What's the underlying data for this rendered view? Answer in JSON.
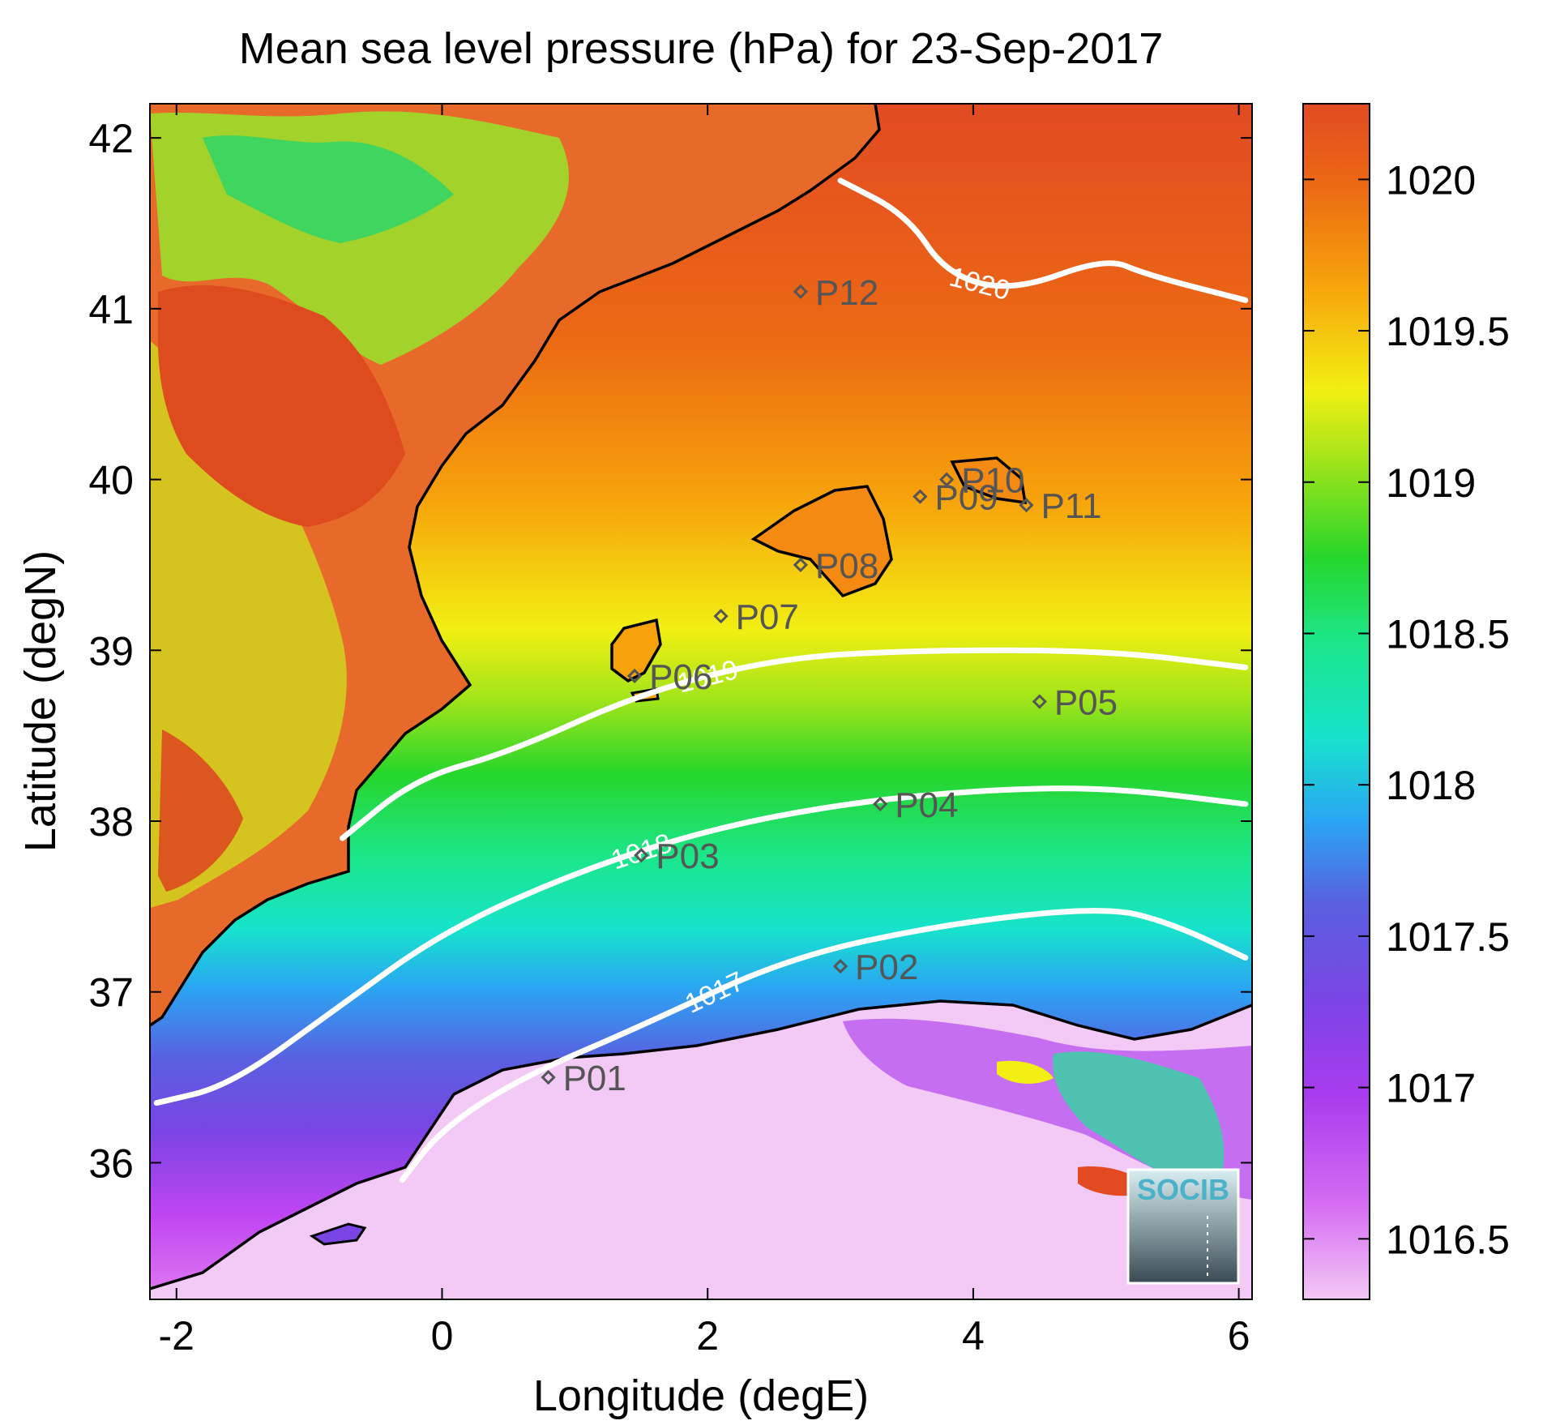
{
  "chart_data": {
    "type": "heatmap",
    "title": "Mean sea level pressure (hPa) for 23-Sep-2017",
    "xlabel": "Longitude (degE)",
    "ylabel": "Latitude (degN)",
    "xlim": [
      -2.2,
      6.1
    ],
    "ylim": [
      35.2,
      42.2
    ],
    "xticks": [
      -2,
      0,
      2,
      4,
      6
    ],
    "yticks": [
      36,
      37,
      38,
      39,
      40,
      41,
      42
    ],
    "colorbar": {
      "range": [
        1016.3,
        1020.25
      ],
      "ticks": [
        1016.5,
        1017,
        1017.5,
        1018,
        1018.5,
        1019,
        1019.5,
        1020
      ],
      "tick_labels": [
        "1016.5",
        "1017",
        "1017.5",
        "1018",
        "1018.5",
        "1019",
        "1019.5",
        "1020"
      ]
    },
    "colors": {
      "max": "#e24a22",
      "high": "#f7a20b",
      "mid_high": "#f2ef12",
      "mid": "#27d62b",
      "mid_low": "#17e3cc",
      "low": "#2aa5f3",
      "lower": "#7b44e4",
      "min": "#f3c9f5",
      "contour": "#ffffff",
      "coastline": "#000000",
      "marker": "#555555"
    },
    "contours": [
      {
        "level": 1017,
        "label": "1017",
        "points": [
          [
            -0.3,
            35.9
          ],
          [
            0,
            36.2
          ],
          [
            0.6,
            36.5
          ],
          [
            1.5,
            36.8
          ],
          [
            2.6,
            37.2
          ],
          [
            3.8,
            37.4
          ],
          [
            5,
            37.5
          ],
          [
            5.5,
            37.4
          ],
          [
            6.05,
            37.2
          ]
        ]
      },
      {
        "level": 1018,
        "label": "1018",
        "points": [
          [
            -2.15,
            36.35
          ],
          [
            -1.6,
            36.45
          ],
          [
            -0.8,
            36.9
          ],
          [
            0,
            37.35
          ],
          [
            1,
            37.7
          ],
          [
            2,
            37.95
          ],
          [
            3,
            38.1
          ],
          [
            4,
            38.18
          ],
          [
            5,
            38.2
          ],
          [
            6.05,
            38.1
          ]
        ]
      },
      {
        "level": 1019,
        "label": "1019",
        "points": [
          [
            -0.75,
            37.9
          ],
          [
            -0.2,
            38.25
          ],
          [
            0.5,
            38.4
          ],
          [
            1.5,
            38.75
          ],
          [
            2.5,
            38.95
          ],
          [
            3.5,
            39.0
          ],
          [
            5,
            39.0
          ],
          [
            6.05,
            38.9
          ]
        ]
      },
      {
        "level": 1020,
        "label": "1020",
        "points": [
          [
            3.0,
            41.75
          ],
          [
            3.5,
            41.55
          ],
          [
            3.8,
            41.2
          ],
          [
            4.3,
            41.1
          ],
          [
            5,
            41.3
          ],
          [
            5.3,
            41.2
          ],
          [
            6.05,
            41.05
          ]
        ]
      }
    ],
    "stations": [
      {
        "name": "P01",
        "lon": 0.8,
        "lat": 36.5
      },
      {
        "name": "P02",
        "lon": 3.0,
        "lat": 37.15
      },
      {
        "name": "P03",
        "lon": 1.5,
        "lat": 37.8
      },
      {
        "name": "P04",
        "lon": 3.3,
        "lat": 38.1
      },
      {
        "name": "P05",
        "lon": 4.5,
        "lat": 38.7
      },
      {
        "name": "P06",
        "lon": 1.45,
        "lat": 38.85
      },
      {
        "name": "P07",
        "lon": 2.1,
        "lat": 39.2
      },
      {
        "name": "P08",
        "lon": 2.7,
        "lat": 39.5
      },
      {
        "name": "P09",
        "lon": 3.6,
        "lat": 39.9
      },
      {
        "name": "P10",
        "lon": 3.8,
        "lat": 40.0
      },
      {
        "name": "P11",
        "lon": 4.4,
        "lat": 39.85
      },
      {
        "name": "P12",
        "lon": 2.7,
        "lat": 41.1
      }
    ]
  },
  "logo": {
    "text": "SOCIB"
  }
}
